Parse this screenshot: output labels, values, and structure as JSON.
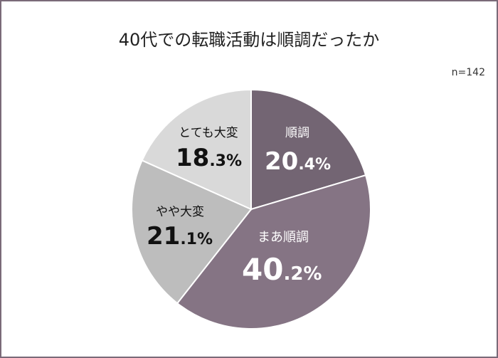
{
  "chart_data": {
    "type": "pie",
    "title": "40代での転職活動は順調だったか",
    "note": "n=142",
    "start_angle_deg": 0,
    "direction": "clockwise",
    "slices": [
      {
        "label": "順調",
        "value": 20.4,
        "int_text": "20",
        "dec_text": ".4%",
        "color": "#736573",
        "text_color": "#ffffff"
      },
      {
        "label": "まあ順調",
        "value": 40.2,
        "int_text": "40",
        "dec_text": ".2%",
        "color": "#857484",
        "text_color": "#ffffff"
      },
      {
        "label": "やや大変",
        "value": 21.1,
        "int_text": "21",
        "dec_text": ".1%",
        "color": "#bdbdbd",
        "text_color": "#111111"
      },
      {
        "label": "とても大変",
        "value": 18.3,
        "int_text": "18",
        "dec_text": ".3%",
        "color": "#d9d9d9",
        "text_color": "#111111"
      }
    ]
  }
}
